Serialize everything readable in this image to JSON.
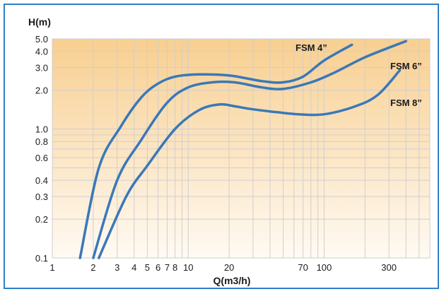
{
  "chart_data": {
    "type": "line",
    "xlabel": "Q(m3/h)",
    "ylabel": "H(m)",
    "x_ticks": [
      "1",
      "2",
      "3",
      "4",
      "5",
      "6",
      "7",
      "8",
      "10",
      "20",
      "70",
      "100",
      "300"
    ],
    "x_tick_values": [
      1,
      2,
      3,
      4,
      5,
      6,
      7,
      8,
      10,
      20,
      70,
      100,
      300
    ],
    "y_ticks": [
      "0.1",
      "0.2",
      "0.3",
      "0.4",
      "0.6",
      "0.8",
      "1.0",
      "2.0",
      "3.0",
      "4.0",
      "5.0"
    ],
    "y_tick_values": [
      0.1,
      0.2,
      0.3,
      0.4,
      0.6,
      0.8,
      1.0,
      2.0,
      3.0,
      4.0,
      5.0
    ],
    "grid": true,
    "colors": {
      "curve": "#3a78b8",
      "frame": "#2f80c8",
      "bg_top": "#f8cf90",
      "bg_bottom": "#fffaf3"
    },
    "series": [
      {
        "name": "FSM  4”",
        "x": [
          1.6,
          2.2,
          3.2,
          4.5,
          6,
          8,
          12,
          20,
          35,
          50,
          70,
          100,
          160
        ],
        "y": [
          0.1,
          0.5,
          1.05,
          1.75,
          2.25,
          2.55,
          2.65,
          2.6,
          2.35,
          2.3,
          2.55,
          3.4,
          4.5
        ]
      },
      {
        "name": "FSM  6”",
        "x": [
          2.0,
          3.0,
          4.5,
          7,
          10,
          15,
          22,
          35,
          50,
          80,
          120,
          200,
          400
        ],
        "y": [
          0.1,
          0.4,
          0.82,
          1.6,
          2.1,
          2.3,
          2.3,
          2.1,
          2.05,
          2.3,
          2.75,
          3.6,
          4.8
        ]
      },
      {
        "name": "FSM  8”",
        "x": [
          2.2,
          3.5,
          5,
          8,
          12,
          17,
          22,
          30,
          45,
          65,
          100,
          170,
          250,
          360
        ],
        "y": [
          0.1,
          0.3,
          0.52,
          1.0,
          1.4,
          1.55,
          1.5,
          1.42,
          1.35,
          1.3,
          1.3,
          1.5,
          1.85,
          2.85
        ]
      }
    ]
  }
}
